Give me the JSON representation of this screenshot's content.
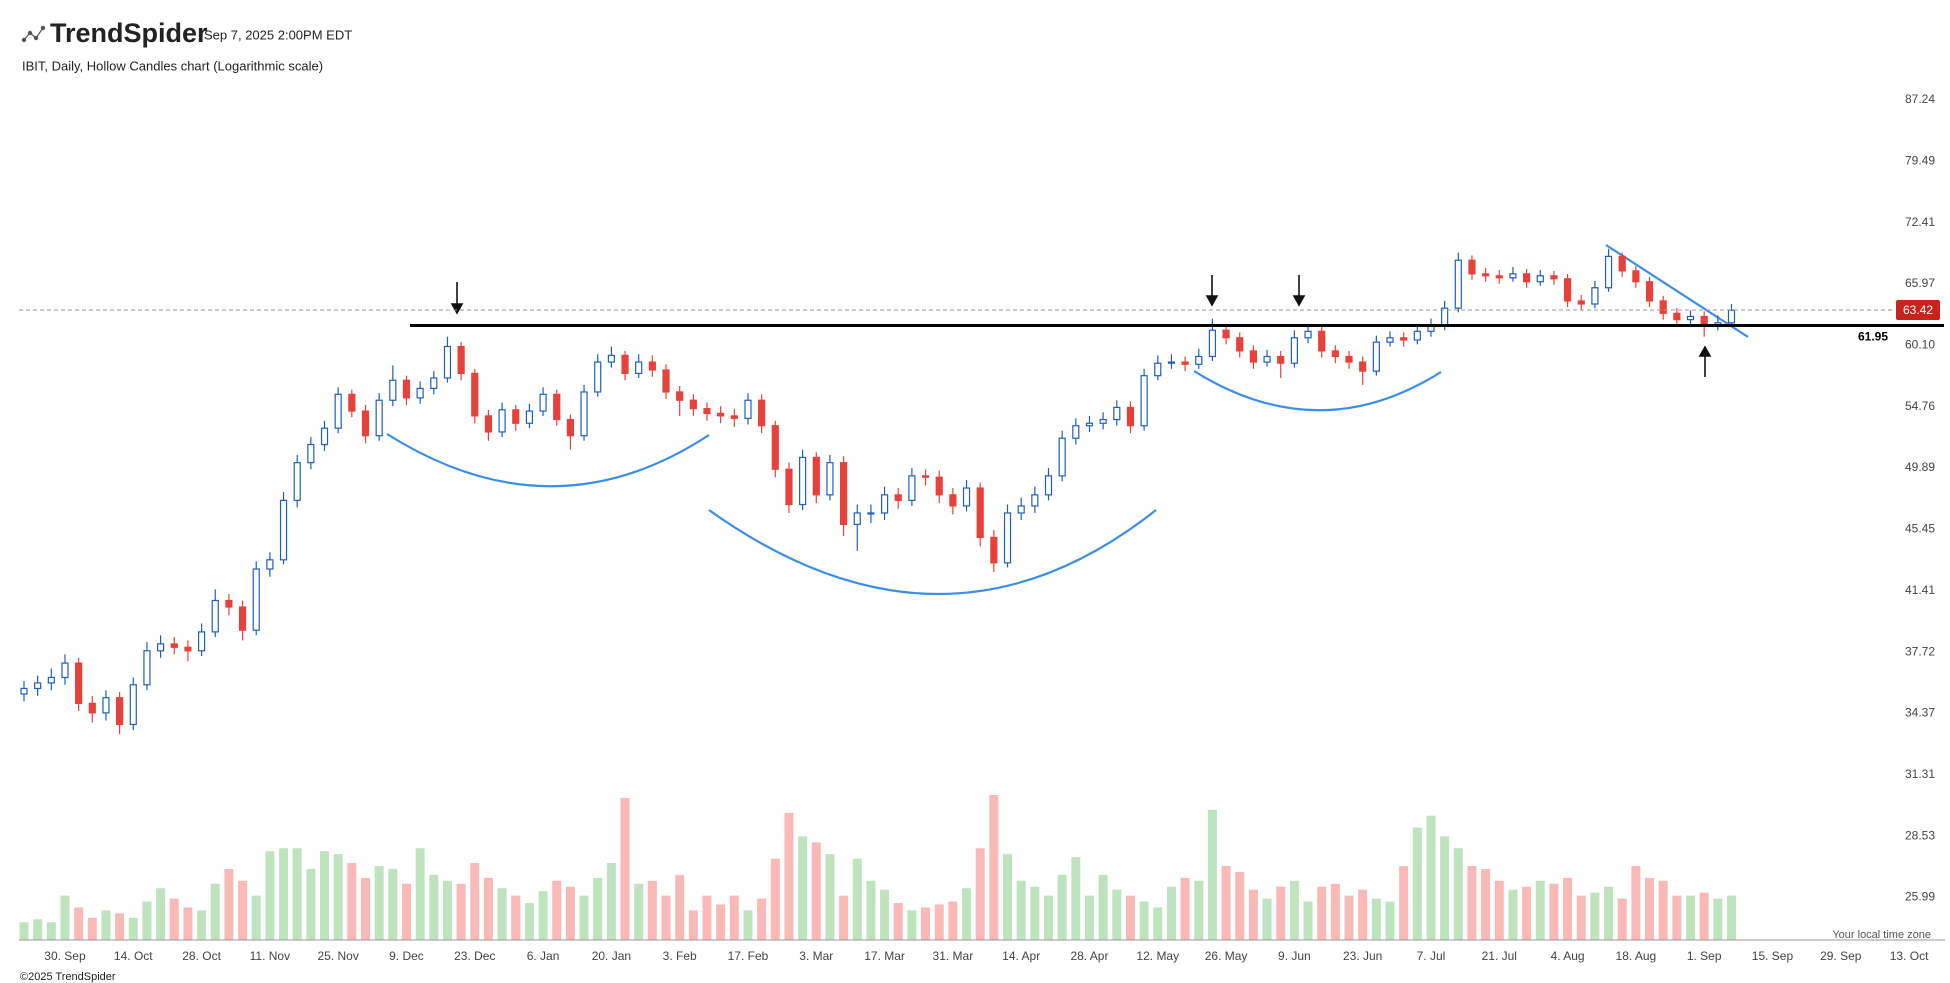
{
  "header": {
    "brand": "TrendSpider",
    "timestamp": "Sep 7, 2025 2:00PM EDT"
  },
  "footer": {
    "copyright": "©2025 TrendSpider",
    "timezone_note": "Your local time zone"
  },
  "chart_data": {
    "type": "candlestick",
    "title": "IBIT, Daily, Hollow Candles chart (Logarithmic scale)",
    "log_scale": true,
    "ylim": [
      25.99,
      87.24
    ],
    "yticks": [
      87.24,
      79.49,
      72.41,
      65.97,
      {
        "value": 60.1,
        "label": "60.10"
      },
      54.76,
      49.89,
      45.45,
      41.41,
      37.72,
      34.37,
      31.31,
      28.53,
      25.99
    ],
    "support_level": 61.95,
    "last_price": 63.42,
    "up_color": "#1f5fbf",
    "down_color": "#e8413c",
    "volume_up_color": "#bfe3bf",
    "volume_down_color": "#f9b9b9",
    "categories": [
      null,
      null,
      null,
      "30. Sep",
      null,
      null,
      null,
      null,
      "14. Oct",
      null,
      null,
      null,
      null,
      "28. Oct",
      null,
      null,
      null,
      null,
      "11. Nov",
      null,
      null,
      null,
      null,
      "25. Nov",
      null,
      null,
      null,
      null,
      "9. Dec",
      null,
      null,
      null,
      null,
      "23. Dec",
      null,
      null,
      null,
      null,
      "6. Jan",
      null,
      null,
      null,
      null,
      "20. Jan",
      null,
      null,
      null,
      null,
      "3. Feb",
      null,
      null,
      null,
      null,
      "17. Feb",
      null,
      null,
      null,
      null,
      "3. Mar",
      null,
      null,
      null,
      null,
      "17. Mar",
      null,
      null,
      null,
      null,
      "31. Mar",
      null,
      null,
      null,
      null,
      "14. Apr",
      null,
      null,
      null,
      null,
      "28. Apr",
      null,
      null,
      null,
      null,
      "12. May",
      null,
      null,
      null,
      null,
      "26. May",
      null,
      null,
      null,
      null,
      "9. Jun",
      null,
      null,
      null,
      null,
      "23. Jun",
      null,
      null,
      null,
      null,
      "7. Jul",
      null,
      null,
      null,
      null,
      "21. Jul",
      null,
      null,
      null,
      null,
      "4. Aug",
      null,
      null,
      null,
      null,
      "18. Aug",
      null,
      null,
      null,
      null,
      "1. Sep",
      null,
      null,
      null,
      null,
      "15. Sep",
      null,
      null,
      null,
      null,
      "29. Sep",
      null,
      null,
      null,
      null,
      "13. Oct",
      null
    ],
    "open": [
      35.4,
      35.7,
      36.0,
      36.3,
      37.1,
      34.9,
      34.4,
      35.2,
      33.8,
      35.9,
      37.8,
      38.2,
      38.0,
      37.8,
      38.9,
      40.8,
      40.4,
      39.0,
      42.8,
      43.4,
      47.5,
      50.3,
      51.7,
      53.0,
      55.8,
      54.4,
      52.4,
      55.3,
      57.0,
      55.5,
      56.3,
      57.2,
      60.0,
      57.6,
      54.0,
      52.7,
      54.5,
      53.4,
      54.4,
      55.8,
      53.7,
      52.4,
      56.0,
      58.6,
      59.2,
      57.6,
      58.6,
      57.9,
      56.0,
      55.3,
      54.6,
      54.2,
      54.0,
      53.8,
      55.3,
      53.2,
      49.8,
      47.2,
      50.7,
      47.9,
      50.3,
      45.8,
      46.6,
      46.6,
      47.9,
      47.5,
      49.3,
      49.2,
      47.9,
      47.1,
      48.4,
      44.9,
      43.2,
      46.6,
      47.1,
      47.9,
      49.3,
      52.2,
      53.2,
      53.4,
      53.7,
      54.7,
      53.2,
      57.4,
      58.5,
      58.6,
      58.4,
      59.1,
      61.5,
      60.8,
      59.6,
      58.6,
      59.1,
      58.5,
      60.8,
      61.4,
      59.6,
      59.1,
      58.6,
      57.8,
      60.4,
      60.8,
      60.6,
      61.4,
      62.0,
      63.6,
      68.4,
      67.0,
      66.8,
      66.6,
      67.0,
      66.2,
      66.8,
      66.5,
      64.3,
      64.0,
      65.6,
      68.8,
      67.3,
      66.2,
      64.3,
      63.1,
      62.5,
      62.8,
      62.0,
      62.2,
      null,
      null,
      null,
      null,
      null,
      null,
      null,
      null,
      null,
      null,
      null,
      null,
      null,
      null
    ],
    "high": [
      36.1,
      36.4,
      36.8,
      37.6,
      37.4,
      35.3,
      35.6,
      35.5,
      36.3,
      38.3,
      38.7,
      38.6,
      38.4,
      39.4,
      41.5,
      41.2,
      40.8,
      43.3,
      43.9,
      48.1,
      50.9,
      52.3,
      53.6,
      56.4,
      56.2,
      54.9,
      55.9,
      58.3,
      57.4,
      56.9,
      57.8,
      60.9,
      60.4,
      58.0,
      54.5,
      55.1,
      54.9,
      55.0,
      56.4,
      56.2,
      54.1,
      56.6,
      59.3,
      60.0,
      59.6,
      59.3,
      59.2,
      58.4,
      56.5,
      55.8,
      55.1,
      54.8,
      54.6,
      55.9,
      55.8,
      53.6,
      50.3,
      51.3,
      51.1,
      50.9,
      50.8,
      47.2,
      47.2,
      48.5,
      48.4,
      49.9,
      49.8,
      49.7,
      48.4,
      49.0,
      48.8,
      45.4,
      47.2,
      47.7,
      48.5,
      49.9,
      52.8,
      53.8,
      54.0,
      54.3,
      55.3,
      55.2,
      58.0,
      59.2,
      59.3,
      59.1,
      59.8,
      62.6,
      62.1,
      61.3,
      60.1,
      59.7,
      59.6,
      61.5,
      62.1,
      61.9,
      60.1,
      59.6,
      59.1,
      61.0,
      61.4,
      61.3,
      62.0,
      62.6,
      64.3,
      69.2,
      68.9,
      67.6,
      67.4,
      67.7,
      67.5,
      67.4,
      67.3,
      67.0,
      64.9,
      66.3,
      69.6,
      69.2,
      67.8,
      66.7,
      64.8,
      63.6,
      63.4,
      63.3,
      62.9,
      64.0,
      null,
      null,
      null,
      null,
      null,
      null,
      null,
      null,
      null,
      null,
      null,
      null,
      null,
      null
    ],
    "low": [
      35.0,
      35.3,
      35.6,
      35.9,
      34.5,
      33.9,
      34.0,
      33.3,
      33.5,
      35.6,
      37.4,
      37.6,
      37.2,
      37.5,
      38.6,
      39.9,
      38.4,
      38.7,
      42.3,
      43.1,
      47.0,
      49.8,
      51.2,
      52.6,
      53.9,
      51.8,
      52.0,
      54.8,
      54.9,
      55.0,
      55.8,
      56.8,
      57.0,
      53.4,
      52.0,
      52.3,
      52.8,
      53.0,
      54.0,
      53.2,
      51.3,
      52.0,
      55.6,
      58.1,
      57.0,
      57.2,
      57.3,
      55.4,
      54.0,
      54.0,
      53.6,
      53.4,
      53.1,
      53.3,
      52.6,
      49.2,
      46.6,
      46.8,
      47.3,
      47.5,
      45.0,
      44.0,
      45.9,
      46.1,
      46.9,
      47.1,
      48.6,
      47.3,
      46.5,
      46.7,
      44.3,
      42.6,
      42.9,
      46.1,
      46.6,
      47.5,
      48.9,
      51.7,
      52.7,
      52.9,
      53.2,
      52.6,
      52.8,
      57.0,
      58.0,
      57.8,
      58.0,
      58.7,
      60.2,
      59.0,
      58.0,
      58.2,
      57.2,
      58.1,
      60.3,
      59.0,
      58.5,
      58.0,
      56.6,
      57.4,
      60.0,
      60.0,
      60.2,
      60.9,
      61.5,
      63.2,
      66.4,
      66.2,
      66.0,
      66.2,
      65.6,
      65.8,
      65.9,
      63.7,
      63.4,
      63.6,
      65.2,
      66.7,
      65.6,
      63.7,
      62.5,
      61.9,
      62.0,
      60.9,
      61.5,
      61.9,
      null,
      null,
      null,
      null,
      null,
      null,
      null,
      null,
      null,
      null,
      null,
      null,
      null,
      null
    ],
    "close": [
      35.7,
      36.0,
      36.3,
      37.1,
      34.9,
      34.4,
      35.2,
      33.8,
      35.9,
      37.8,
      38.2,
      38.0,
      37.8,
      38.9,
      40.8,
      40.4,
      39.0,
      42.8,
      43.4,
      47.5,
      50.3,
      51.7,
      53.0,
      55.8,
      54.4,
      52.4,
      55.3,
      57.0,
      55.5,
      56.3,
      57.2,
      60.0,
      57.6,
      54.0,
      52.7,
      54.5,
      53.4,
      54.4,
      55.8,
      53.7,
      52.4,
      56.0,
      58.6,
      59.2,
      57.6,
      58.6,
      57.9,
      56.0,
      55.3,
      54.6,
      54.2,
      54.0,
      53.8,
      55.3,
      53.2,
      49.8,
      47.2,
      50.7,
      47.9,
      50.3,
      45.8,
      46.6,
      46.6,
      47.9,
      47.5,
      49.3,
      49.2,
      47.9,
      47.1,
      48.4,
      44.9,
      43.2,
      46.6,
      47.1,
      47.9,
      49.3,
      52.2,
      53.2,
      53.4,
      53.7,
      54.7,
      53.2,
      57.4,
      58.5,
      58.6,
      58.4,
      59.1,
      61.5,
      60.8,
      59.6,
      58.6,
      59.1,
      58.5,
      60.8,
      61.4,
      59.6,
      59.1,
      58.6,
      57.8,
      60.4,
      60.8,
      60.6,
      61.4,
      62.0,
      63.6,
      68.4,
      67.0,
      66.8,
      66.6,
      67.0,
      66.2,
      66.8,
      66.5,
      64.3,
      64.0,
      65.6,
      68.8,
      67.3,
      66.2,
      64.3,
      63.1,
      62.5,
      62.8,
      62.0,
      62.2,
      63.4,
      null,
      null,
      null,
      null,
      null,
      null,
      null,
      null,
      null,
      null,
      null,
      null,
      null,
      null
    ],
    "volume": [
      12,
      14,
      12,
      30,
      22,
      15,
      20,
      18,
      15,
      26,
      35,
      28,
      22,
      20,
      38,
      48,
      40,
      30,
      60,
      62,
      62,
      48,
      60,
      58,
      52,
      42,
      50,
      48,
      38,
      62,
      44,
      40,
      38,
      52,
      42,
      35,
      30,
      25,
      33,
      40,
      36,
      30,
      42,
      52,
      96,
      38,
      40,
      30,
      44,
      20,
      30,
      24,
      30,
      20,
      28,
      55,
      86,
      70,
      66,
      58,
      30,
      55,
      40,
      34,
      25,
      20,
      22,
      24,
      26,
      35,
      62,
      98,
      58,
      40,
      36,
      30,
      44,
      56,
      30,
      44,
      34,
      30,
      26,
      22,
      36,
      42,
      40,
      88,
      50,
      46,
      34,
      28,
      36,
      40,
      26,
      36,
      38,
      30,
      34,
      28,
      26,
      50,
      76,
      84,
      70,
      62,
      50,
      48,
      40,
      34,
      36,
      40,
      38,
      42,
      30,
      32,
      36,
      28,
      50,
      42,
      40,
      30,
      30,
      32,
      28,
      30,
      null,
      null,
      null,
      null,
      null,
      null,
      null,
      null,
      null,
      null,
      null,
      null,
      null,
      null
    ]
  }
}
